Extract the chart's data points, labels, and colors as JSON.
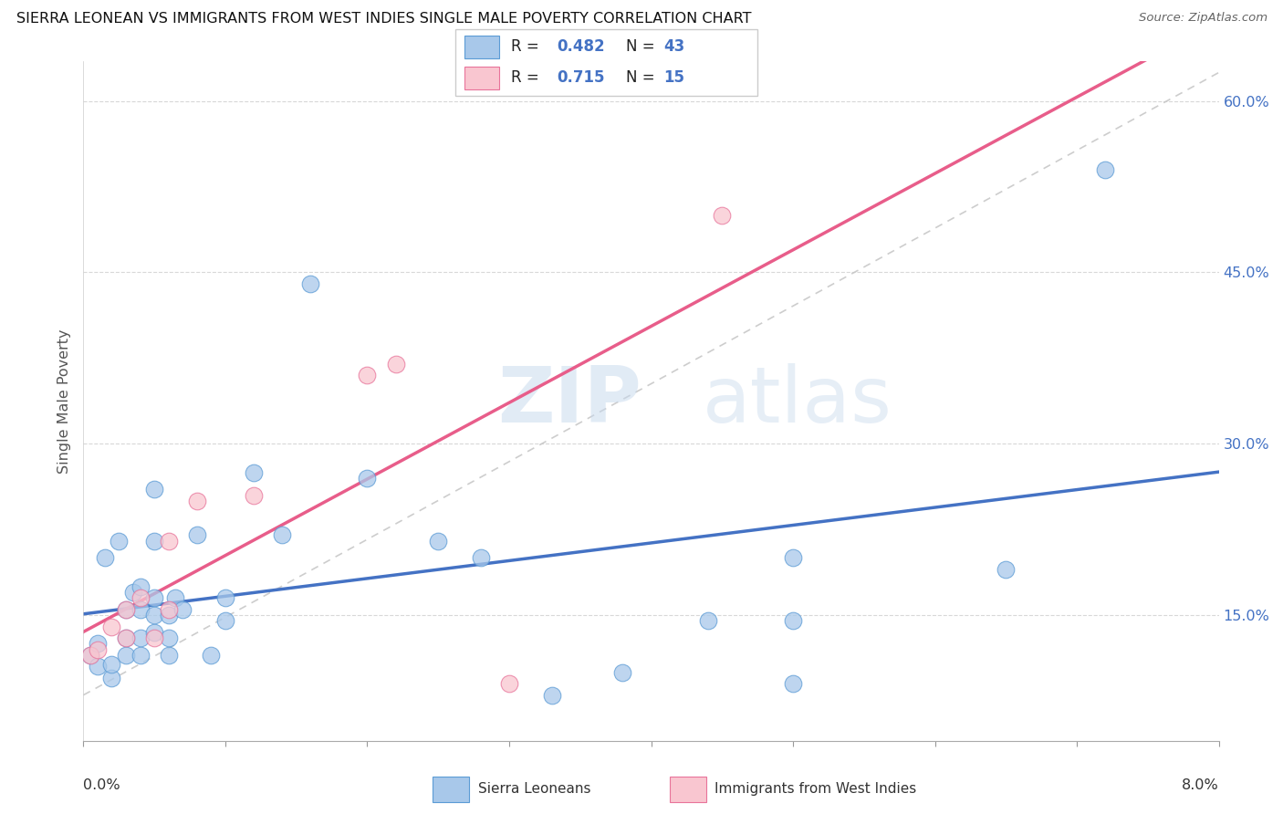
{
  "title": "SIERRA LEONEAN VS IMMIGRANTS FROM WEST INDIES SINGLE MALE POVERTY CORRELATION CHART",
  "source": "Source: ZipAtlas.com",
  "ylabel": "Single Male Poverty",
  "legend1_label": "Sierra Leoneans",
  "legend2_label": "Immigrants from West Indies",
  "R1": 0.482,
  "N1": 43,
  "R2": 0.715,
  "N2": 15,
  "color_blue_fill": "#a8c8ea",
  "color_blue_edge": "#5b9bd5",
  "color_pink_fill": "#f9c6d0",
  "color_pink_edge": "#e8739a",
  "color_blue_line": "#4472c4",
  "color_pink_line": "#e85d8a",
  "color_ref_line": "#c8c8c8",
  "color_grid": "#d8d8d8",
  "color_right_tick": "#4472c4",
  "watermark_zip": "ZIP",
  "watermark_atlas": "atlas",
  "xmin": 0.0,
  "xmax": 0.08,
  "ymin": 0.04,
  "ymax": 0.635,
  "y_ticks": [
    0.15,
    0.3,
    0.45,
    0.6
  ],
  "y_tick_labels": [
    "15.0%",
    "30.0%",
    "45.0%",
    "60.0%"
  ],
  "blue_x": [
    0.0005,
    0.001,
    0.001,
    0.0015,
    0.002,
    0.002,
    0.0025,
    0.003,
    0.003,
    0.003,
    0.0035,
    0.004,
    0.004,
    0.004,
    0.004,
    0.005,
    0.005,
    0.005,
    0.005,
    0.005,
    0.006,
    0.006,
    0.006,
    0.0065,
    0.007,
    0.008,
    0.009,
    0.01,
    0.01,
    0.012,
    0.014,
    0.016,
    0.02,
    0.025,
    0.028,
    0.033,
    0.038,
    0.044,
    0.05,
    0.05,
    0.05,
    0.065,
    0.072
  ],
  "blue_y": [
    0.115,
    0.105,
    0.125,
    0.2,
    0.095,
    0.107,
    0.215,
    0.115,
    0.13,
    0.155,
    0.17,
    0.115,
    0.13,
    0.155,
    0.175,
    0.135,
    0.15,
    0.165,
    0.215,
    0.26,
    0.115,
    0.13,
    0.15,
    0.165,
    0.155,
    0.22,
    0.115,
    0.145,
    0.165,
    0.275,
    0.22,
    0.44,
    0.27,
    0.215,
    0.2,
    0.08,
    0.1,
    0.145,
    0.09,
    0.2,
    0.145,
    0.19,
    0.54
  ],
  "pink_x": [
    0.0005,
    0.001,
    0.002,
    0.003,
    0.003,
    0.004,
    0.005,
    0.006,
    0.006,
    0.008,
    0.012,
    0.02,
    0.022,
    0.03,
    0.045
  ],
  "pink_y": [
    0.115,
    0.12,
    0.14,
    0.13,
    0.155,
    0.165,
    0.13,
    0.155,
    0.215,
    0.25,
    0.255,
    0.36,
    0.37,
    0.09,
    0.5
  ]
}
